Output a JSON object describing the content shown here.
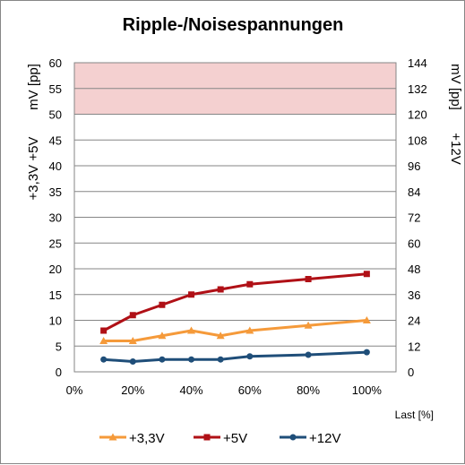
{
  "chart_data": {
    "type": "line",
    "title": "Ripple-/Noisespannungen",
    "xlabel": "Last [%]",
    "ylabel_left_top": "mV [pp]",
    "ylabel_left_bottom": "+3,3V +5V",
    "ylabel_right_top": "mV [pp]",
    "ylabel_right_bottom": "+12V",
    "x_ticks": [
      "0%",
      "20%",
      "40%",
      "60%",
      "80%",
      "100%"
    ],
    "y_left_ticks": [
      "0",
      "5",
      "10",
      "15",
      "20",
      "25",
      "30",
      "35",
      "40",
      "45",
      "50",
      "55",
      "60"
    ],
    "y_right_ticks": [
      "0",
      "12",
      "24",
      "36",
      "48",
      "60",
      "72",
      "84",
      "96",
      "108",
      "120",
      "132",
      "144"
    ],
    "ylim_left": [
      0,
      60
    ],
    "ylim_right": [
      0,
      144
    ],
    "limit_band_left": [
      50,
      60
    ],
    "limit_band_color": "#f4d0d0",
    "grid": true,
    "legend_position": "bottom",
    "x": [
      10,
      20,
      30,
      40,
      50,
      60,
      80,
      100
    ],
    "series": [
      {
        "name": "+3,3V",
        "axis": "left",
        "color": "#f59a3a",
        "marker": "triangle",
        "values": [
          6,
          6,
          7,
          8,
          7,
          8,
          9,
          10
        ]
      },
      {
        "name": "+5V",
        "axis": "left",
        "color": "#b01016",
        "marker": "square",
        "values": [
          8,
          11,
          13,
          15,
          16,
          17,
          18,
          19
        ]
      },
      {
        "name": "+12V",
        "axis": "right",
        "color": "#1f4e79",
        "marker": "circle",
        "values": [
          5.76,
          4.8,
          5.76,
          5.76,
          5.76,
          7.2,
          7.92,
          9.12
        ]
      }
    ]
  }
}
